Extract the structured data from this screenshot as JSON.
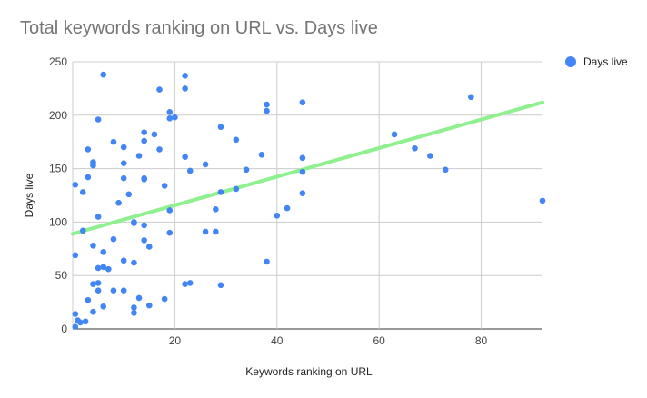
{
  "chart_data": {
    "type": "scatter",
    "title": "Total keywords ranking on URL vs. Days live",
    "xlabel": "Keywords ranking on URL",
    "ylabel": "Days live",
    "xlim": [
      0,
      92
    ],
    "ylim": [
      0,
      250
    ],
    "xticks": [
      20,
      40,
      60,
      80
    ],
    "yticks": [
      0,
      50,
      100,
      150,
      200,
      250
    ],
    "grid": true,
    "legend": "right",
    "trendline": {
      "type": "linear",
      "points": [
        [
          0,
          89
        ],
        [
          92,
          212
        ]
      ],
      "color": "#8ef08e"
    },
    "series": [
      {
        "name": "Days live",
        "color": "#4285f4",
        "points": [
          [
            0.5,
            2
          ],
          [
            0.5,
            14
          ],
          [
            0.5,
            69
          ],
          [
            0.5,
            135
          ],
          [
            1,
            8
          ],
          [
            1.5,
            6
          ],
          [
            2,
            92
          ],
          [
            2,
            128
          ],
          [
            2.5,
            7
          ],
          [
            3,
            27
          ],
          [
            3,
            142
          ],
          [
            3,
            168
          ],
          [
            4,
            16
          ],
          [
            4,
            42
          ],
          [
            4,
            78
          ],
          [
            4,
            153
          ],
          [
            4,
            156
          ],
          [
            5,
            36
          ],
          [
            5,
            43
          ],
          [
            5,
            57
          ],
          [
            5,
            105
          ],
          [
            5,
            196
          ],
          [
            6,
            21
          ],
          [
            6,
            58
          ],
          [
            6,
            72
          ],
          [
            6,
            238
          ],
          [
            7,
            56
          ],
          [
            8,
            36
          ],
          [
            8,
            84
          ],
          [
            8,
            175
          ],
          [
            9,
            118
          ],
          [
            10,
            36
          ],
          [
            10,
            64
          ],
          [
            10,
            141
          ],
          [
            10,
            155
          ],
          [
            10,
            170
          ],
          [
            11,
            126
          ],
          [
            12,
            15
          ],
          [
            12,
            20
          ],
          [
            12,
            62
          ],
          [
            12,
            99
          ],
          [
            12,
            100
          ],
          [
            13,
            29
          ],
          [
            13,
            162
          ],
          [
            14,
            83
          ],
          [
            14,
            97
          ],
          [
            14,
            140
          ],
          [
            14,
            141
          ],
          [
            14,
            176
          ],
          [
            14,
            184
          ],
          [
            15,
            22
          ],
          [
            15,
            77
          ],
          [
            16,
            182
          ],
          [
            17,
            168
          ],
          [
            17,
            224
          ],
          [
            18,
            28
          ],
          [
            18,
            134
          ],
          [
            19,
            90
          ],
          [
            19,
            111
          ],
          [
            19,
            197
          ],
          [
            19,
            203
          ],
          [
            20,
            198
          ],
          [
            22,
            42
          ],
          [
            22,
            161
          ],
          [
            22,
            225
          ],
          [
            22,
            237
          ],
          [
            23,
            43
          ],
          [
            23,
            148
          ],
          [
            26,
            91
          ],
          [
            26,
            154
          ],
          [
            28,
            91
          ],
          [
            28,
            112
          ],
          [
            29,
            41
          ],
          [
            29,
            128
          ],
          [
            29,
            189
          ],
          [
            32,
            131
          ],
          [
            32,
            177
          ],
          [
            34,
            149
          ],
          [
            37,
            163
          ],
          [
            38,
            63
          ],
          [
            38,
            204
          ],
          [
            38,
            210
          ],
          [
            40,
            106
          ],
          [
            42,
            113
          ],
          [
            45,
            127
          ],
          [
            45,
            147
          ],
          [
            45,
            160
          ],
          [
            45,
            212
          ],
          [
            63,
            182
          ],
          [
            67,
            169
          ],
          [
            70,
            162
          ],
          [
            73,
            149
          ],
          [
            78,
            217
          ],
          [
            92,
            120
          ]
        ]
      }
    ]
  }
}
